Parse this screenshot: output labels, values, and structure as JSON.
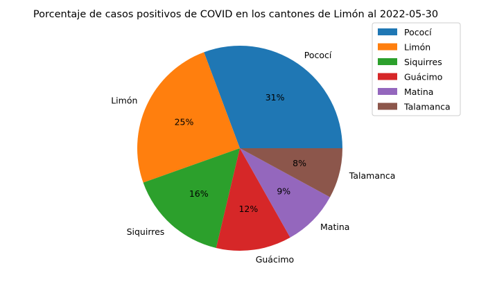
{
  "chart_data": {
    "type": "pie",
    "title": "Porcentaje de casos positivos de COVID en los cantones de Limón al 2022-05-30",
    "slices": [
      {
        "label": "Pococí",
        "value": 31,
        "pct_label": "31%",
        "color": "#1f77b4"
      },
      {
        "label": "Limón",
        "value": 25,
        "pct_label": "25%",
        "color": "#ff7f0e"
      },
      {
        "label": "Siquirres",
        "value": 16,
        "pct_label": "16%",
        "color": "#2ca02c"
      },
      {
        "label": "Guácimo",
        "value": 12,
        "pct_label": "12%",
        "color": "#d62728"
      },
      {
        "label": "Matina",
        "value": 9,
        "pct_label": "9%",
        "color": "#9467bd"
      },
      {
        "label": "Talamanca",
        "value": 8,
        "pct_label": "8%",
        "color": "#8c564b"
      }
    ],
    "legend_placement": "top-right",
    "start_angle_deg": 0,
    "direction": "counterclockwise"
  }
}
